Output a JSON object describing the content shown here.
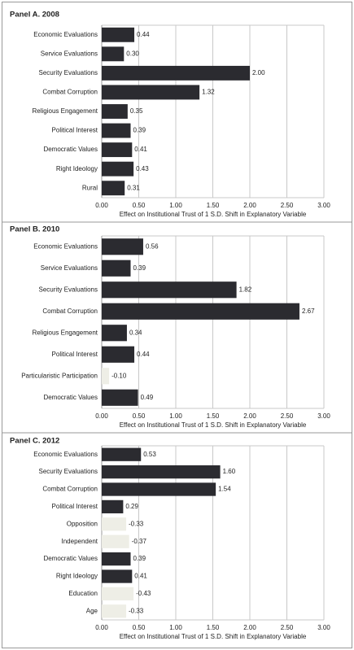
{
  "chart_data": [
    {
      "type": "bar",
      "orientation": "horizontal",
      "title": "Panel A. 2008",
      "x_label": "Effect on Institutional Trust of 1 S.D. Shift in Explanatory Variable",
      "categories": [
        "Economic Evaluations",
        "Service Evaluations",
        "Security Evaluations",
        "Combat Corruption",
        "Religious Engagement",
        "Political Interest",
        "Democratic Values",
        "Right Ideology",
        "Rural"
      ],
      "values": [
        0.44,
        0.3,
        2.0,
        1.32,
        0.35,
        0.39,
        0.41,
        0.43,
        0.31
      ],
      "value_labels": [
        "0.44",
        "0.30",
        "2.00",
        "1.32",
        "0.35",
        "0.39",
        "0.41",
        "0.43",
        "0.31"
      ],
      "color": "#2b2b30",
      "negative_color": "#eeeee6",
      "xlim": [
        0,
        3
      ],
      "xticks": [
        {
          "value": 0,
          "label": "0.00"
        },
        {
          "value": 0.5,
          "label": "0.50"
        },
        {
          "value": 1,
          "label": "1.00"
        },
        {
          "value": 1.5,
          "label": "1.50"
        },
        {
          "value": 2,
          "label": "2.00"
        },
        {
          "value": 2.5,
          "label": "2.50"
        },
        {
          "value": 3,
          "label": "3.00"
        }
      ],
      "grid": true
    },
    {
      "type": "bar",
      "orientation": "horizontal",
      "title": "Panel B. 2010",
      "x_label": "Effect on Institutional Trust of 1 S.D. Shift in Explanatory Variable",
      "categories": [
        "Economic Evaluations",
        "Service Evaluations",
        "Security Evaluations",
        "Combat Corruption",
        "Religious Engagement",
        "Political Interest",
        "Particularistic Participation",
        "Democratic Values"
      ],
      "values": [
        0.56,
        0.39,
        1.82,
        2.67,
        0.34,
        0.44,
        -0.1,
        0.49
      ],
      "value_labels": [
        "0.56",
        "0.39",
        "1.82",
        "2.67",
        "0.34",
        "0.44",
        "-0.10",
        "0.49"
      ],
      "color": "#2b2b30",
      "negative_color": "#eeeee6",
      "xlim": [
        0,
        3
      ],
      "xticks": [
        {
          "value": 0,
          "label": "0.00"
        },
        {
          "value": 0.5,
          "label": "0.50"
        },
        {
          "value": 1,
          "label": "1.00"
        },
        {
          "value": 1.5,
          "label": "1.50"
        },
        {
          "value": 2,
          "label": "2.00"
        },
        {
          "value": 2.5,
          "label": "2.50"
        },
        {
          "value": 3,
          "label": "3.00"
        }
      ],
      "grid": true
    },
    {
      "type": "bar",
      "orientation": "horizontal",
      "title": "Panel C. 2012",
      "x_label": "Effect on Institutional Trust of 1 S.D. Shift in Explanatory Variable",
      "categories": [
        "Economic Evaluations",
        "Security Evaluations",
        "Combat Corruption",
        "Political Interest",
        "Opposition",
        "Independent",
        "Democratic Values",
        "Right Ideology",
        "Education",
        "Age"
      ],
      "values": [
        0.53,
        1.6,
        1.54,
        0.29,
        -0.33,
        -0.37,
        0.39,
        0.41,
        -0.43,
        -0.33
      ],
      "value_labels": [
        "0.53",
        "1.60",
        "1.54",
        "0.29",
        "-0.33",
        "-0.37",
        "0.39",
        "0.41",
        "-0.43",
        "-0.33"
      ],
      "color": "#2b2b30",
      "negative_color": "#eeeee6",
      "xlim": [
        0,
        3
      ],
      "xticks": [
        {
          "value": 0,
          "label": "0.00"
        },
        {
          "value": 0.5,
          "label": "0.50"
        },
        {
          "value": 1,
          "label": "1.00"
        },
        {
          "value": 1.5,
          "label": "1.50"
        },
        {
          "value": 2,
          "label": "2.00"
        },
        {
          "value": 2.5,
          "label": "2.50"
        },
        {
          "value": 3,
          "label": "3.00"
        }
      ],
      "grid": true
    }
  ]
}
